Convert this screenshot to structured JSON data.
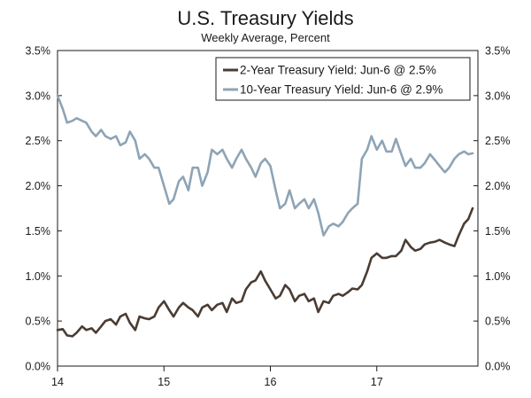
{
  "chart_data": {
    "type": "line",
    "title": "U.S. Treasury Yields",
    "subtitle": "Weekly Average, Percent",
    "xlabel": "",
    "ylabel": "",
    "x_tick_labels": [
      "14",
      "15",
      "16",
      "17"
    ],
    "x_tick_values": [
      2014.0,
      2015.0,
      2016.0,
      2017.0
    ],
    "xlim": [
      2014.0,
      2017.95
    ],
    "ylim": [
      0,
      3.5
    ],
    "y_tick_values": [
      0,
      0.5,
      1.0,
      1.5,
      2.0,
      2.5,
      3.0,
      3.5
    ],
    "y_tick_labels": [
      "0.0%",
      "0.5%",
      "1.0%",
      "1.5%",
      "2.0%",
      "2.5%",
      "3.0%",
      "3.5%"
    ],
    "grid": false,
    "legend_position": "top-right",
    "series": [
      {
        "name": "2-Year Treasury Yield: Jun-6 @ 2.5%",
        "color": "#4a3c33",
        "x": [
          2014.0,
          2014.05,
          2014.09,
          2014.14,
          2014.18,
          2014.23,
          2014.27,
          2014.32,
          2014.36,
          2014.41,
          2014.45,
          2014.5,
          2014.55,
          2014.59,
          2014.64,
          2014.68,
          2014.73,
          2014.77,
          2014.82,
          2014.86,
          2014.91,
          2014.95,
          2015.0,
          2015.05,
          2015.09,
          2015.14,
          2015.18,
          2015.23,
          2015.27,
          2015.32,
          2015.36,
          2015.41,
          2015.45,
          2015.5,
          2015.55,
          2015.59,
          2015.64,
          2015.68,
          2015.73,
          2015.77,
          2015.82,
          2015.86,
          2015.91,
          2015.95,
          2016.0,
          2016.05,
          2016.09,
          2016.14,
          2016.18,
          2016.23,
          2016.27,
          2016.32,
          2016.36,
          2016.41,
          2016.45,
          2016.5,
          2016.55,
          2016.59,
          2016.64,
          2016.68,
          2016.73,
          2016.77,
          2016.82,
          2016.86,
          2016.91,
          2016.95,
          2017.0,
          2017.05,
          2017.09,
          2017.14,
          2017.18,
          2017.23,
          2017.27,
          2017.32,
          2017.36,
          2017.41,
          2017.45,
          2017.5,
          2017.55,
          2017.59,
          2017.64,
          2017.68,
          2017.73,
          2017.77,
          2017.82,
          2017.86,
          2017.9
        ],
        "y": [
          0.4,
          0.41,
          0.34,
          0.33,
          0.37,
          0.44,
          0.4,
          0.42,
          0.37,
          0.44,
          0.5,
          0.52,
          0.46,
          0.55,
          0.58,
          0.48,
          0.4,
          0.55,
          0.53,
          0.52,
          0.55,
          0.65,
          0.72,
          0.62,
          0.55,
          0.65,
          0.7,
          0.65,
          0.62,
          0.55,
          0.65,
          0.68,
          0.62,
          0.68,
          0.7,
          0.6,
          0.75,
          0.7,
          0.72,
          0.85,
          0.93,
          0.95,
          1.05,
          0.95,
          0.85,
          0.75,
          0.78,
          0.9,
          0.85,
          0.72,
          0.78,
          0.8,
          0.72,
          0.75,
          0.6,
          0.72,
          0.7,
          0.78,
          0.8,
          0.78,
          0.82,
          0.86,
          0.85,
          0.9,
          1.05,
          1.2,
          1.25,
          1.2,
          1.2,
          1.22,
          1.22,
          1.28,
          1.4,
          1.32,
          1.28,
          1.3,
          1.35,
          1.37,
          1.38,
          1.4,
          1.37,
          1.35,
          1.33,
          1.45,
          1.58,
          1.63,
          1.75
        ]
      },
      {
        "name": "10-Year Treasury Yield: Jun-6 @ 2.9%",
        "color": "#8ea4b6",
        "x": [
          2014.0,
          2014.05,
          2014.09,
          2014.14,
          2014.18,
          2014.23,
          2014.27,
          2014.32,
          2014.36,
          2014.41,
          2014.45,
          2014.5,
          2014.55,
          2014.59,
          2014.64,
          2014.68,
          2014.73,
          2014.77,
          2014.82,
          2014.86,
          2014.91,
          2014.95,
          2015.0,
          2015.05,
          2015.09,
          2015.14,
          2015.18,
          2015.23,
          2015.27,
          2015.32,
          2015.36,
          2015.41,
          2015.45,
          2015.5,
          2015.55,
          2015.59,
          2015.64,
          2015.68,
          2015.73,
          2015.77,
          2015.82,
          2015.86,
          2015.91,
          2015.95,
          2016.0,
          2016.05,
          2016.09,
          2016.14,
          2016.18,
          2016.23,
          2016.27,
          2016.32,
          2016.36,
          2016.41,
          2016.45,
          2016.5,
          2016.55,
          2016.59,
          2016.64,
          2016.68,
          2016.73,
          2016.77,
          2016.82,
          2016.86,
          2016.91,
          2016.95,
          2017.0,
          2017.05,
          2017.09,
          2017.14,
          2017.18,
          2017.23,
          2017.27,
          2017.32,
          2017.36,
          2017.41,
          2017.45,
          2017.5,
          2017.55,
          2017.59,
          2017.64,
          2017.68,
          2017.73,
          2017.77,
          2017.82,
          2017.86,
          2017.9
        ],
        "y": [
          3.0,
          2.85,
          2.7,
          2.72,
          2.75,
          2.72,
          2.7,
          2.6,
          2.55,
          2.62,
          2.55,
          2.52,
          2.55,
          2.45,
          2.48,
          2.6,
          2.5,
          2.3,
          2.35,
          2.3,
          2.2,
          2.2,
          2.0,
          1.8,
          1.85,
          2.05,
          2.1,
          1.95,
          2.2,
          2.2,
          2.0,
          2.15,
          2.4,
          2.35,
          2.4,
          2.3,
          2.2,
          2.3,
          2.4,
          2.3,
          2.2,
          2.1,
          2.25,
          2.3,
          2.22,
          1.95,
          1.75,
          1.8,
          1.95,
          1.75,
          1.8,
          1.85,
          1.75,
          1.85,
          1.7,
          1.45,
          1.55,
          1.58,
          1.55,
          1.6,
          1.7,
          1.75,
          1.8,
          2.3,
          2.4,
          2.55,
          2.4,
          2.5,
          2.38,
          2.38,
          2.52,
          2.35,
          2.22,
          2.3,
          2.2,
          2.2,
          2.25,
          2.35,
          2.28,
          2.22,
          2.15,
          2.2,
          2.3,
          2.35,
          2.38,
          2.35,
          2.36
        ]
      }
    ]
  }
}
